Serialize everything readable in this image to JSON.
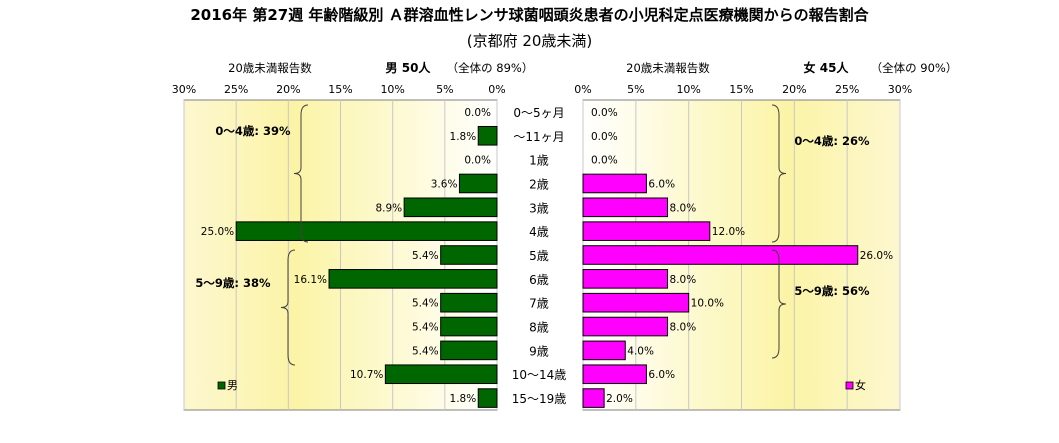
{
  "chart_data": {
    "type": "bar",
    "title": "2016年 第27週 年齢階級別 Ａ群溶血性レンサ球菌咽頭炎患者の小児科定点医療機関からの報告割合",
    "subtitle": "(京都府 20歳未満)",
    "categories": [
      "0〜5ヶ月",
      "〜11ヶ月",
      "1歳",
      "2歳",
      "3歳",
      "4歳",
      "5歳",
      "6歳",
      "7歳",
      "8歳",
      "9歳",
      "10〜14歳",
      "15〜19歳"
    ],
    "ticks": [
      0,
      5,
      10,
      15,
      20,
      25,
      30
    ],
    "tick_labels": [
      "0%",
      "5%",
      "10%",
      "15%",
      "20%",
      "25%",
      "30%"
    ],
    "xlim": [
      0,
      30
    ],
    "grid": true,
    "male": {
      "header_left": "20歳未満報告数",
      "header_title": "男  50人",
      "header_share": "（全体の  89%）",
      "series_name": "男",
      "color": "#006600",
      "values": [
        0.0,
        1.8,
        0.0,
        3.6,
        8.9,
        25.0,
        5.4,
        16.1,
        5.4,
        5.4,
        5.4,
        10.7,
        1.8
      ],
      "value_labels": [
        "0.0%",
        "1.8%",
        "0.0%",
        "3.6%",
        "8.9%",
        "25.0%",
        "5.4%",
        "16.1%",
        "5.4%",
        "5.4%",
        "5.4%",
        "10.7%",
        "1.8%"
      ],
      "group_labels": [
        "0〜4歳: 39%",
        "5〜9歳: 38%"
      ]
    },
    "female": {
      "header_left": "20歳未満報告数",
      "header_title": "女  45人",
      "header_share": "（全体の  90%）",
      "series_name": "女",
      "color": "#FF00FF",
      "values": [
        0.0,
        0.0,
        0.0,
        6.0,
        8.0,
        12.0,
        26.0,
        8.0,
        10.0,
        8.0,
        4.0,
        6.0,
        2.0
      ],
      "value_labels": [
        "0.0%",
        "0.0%",
        "0.0%",
        "6.0%",
        "8.0%",
        "12.0%",
        "26.0%",
        "8.0%",
        "10.0%",
        "8.0%",
        "4.0%",
        "6.0%",
        "2.0%"
      ],
      "group_labels": [
        "0〜4歳: 26%",
        "5〜9歳: 56%"
      ]
    }
  }
}
